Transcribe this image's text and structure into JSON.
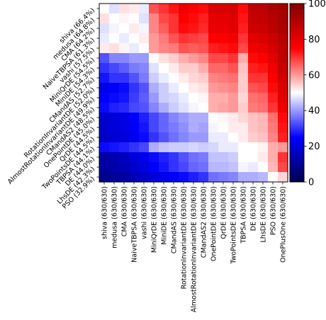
{
  "chart_data": {
    "type": "heatmap",
    "title": "",
    "xlabel": "",
    "ylabel": "",
    "colormap": "seismic",
    "x_labels": [
      "shiva (630/630)",
      "medusa (630/630)",
      "CMA (630/630)",
      "NaiveTBPSA (630/630)",
      "vashi (630/630)",
      "MiniQrDE (630/630)",
      "MiniDE (630/630)",
      "CMandAS (630/630)",
      "RotationInvariantDE (630/630)",
      "AlmostRotationInvariantDE (630/630)",
      "CMandAS2 (630/630)",
      "OnePointDE (630/630)",
      "QrDE (630/630)",
      "TwoPointsDE (630/630)",
      "TBPSA (630/630)",
      "DE (630/630)",
      "LhsDE (630/630)",
      "PSO (630/630)",
      "OnePlusOne (630/630)"
    ],
    "y_labels": [
      "shiva (66.4%)",
      "medusa (64.8%)",
      "CMA (64.2%)",
      "NaiveTBPSA (61.3%)",
      "vashi (57.5%)",
      "MiniQrDE (54.5%)",
      "MiniDE (54.3%)",
      "CMandAS (52.7%)",
      "RotationInvariantDE (52.0%)",
      "AlmostRotationInvariantDE (49.9%)",
      "CMandAS2 (48.5%)",
      "OnePointDE (45.0%)",
      "QrDE (44.5%)",
      "TwoPointsDE (44.5%)",
      "TBPSA (44.1%)",
      "DE (44.0%)",
      "LhsDE (42.3%)",
      "PSO (32.9%)"
    ],
    "zlim": [
      0,
      100
    ],
    "colorbar_ticks": [
      0,
      20,
      40,
      60,
      80,
      100
    ],
    "values": [
      [
        50,
        47,
        53,
        52,
        48,
        67,
        70,
        73,
        78,
        75,
        74,
        82,
        82,
        83,
        74,
        88,
        88,
        91,
        93
      ],
      [
        53,
        50,
        51,
        50,
        47,
        62,
        68,
        70,
        76,
        74,
        72,
        80,
        80,
        81,
        73,
        86,
        87,
        89,
        92
      ],
      [
        47,
        49,
        50,
        52,
        49,
        62,
        66,
        70,
        74,
        73,
        71,
        79,
        79,
        80,
        72,
        84,
        85,
        88,
        91
      ],
      [
        48,
        50,
        48,
        50,
        52,
        60,
        63,
        67,
        70,
        69,
        68,
        75,
        76,
        77,
        70,
        80,
        82,
        85,
        89
      ],
      [
        52,
        53,
        51,
        48,
        50,
        60,
        62,
        63,
        67,
        66,
        67,
        72,
        73,
        74,
        68,
        78,
        79,
        83,
        88
      ],
      [
        33,
        38,
        38,
        40,
        40,
        50,
        53,
        55,
        58,
        60,
        62,
        68,
        68,
        70,
        58,
        74,
        75,
        80,
        88
      ],
      [
        30,
        32,
        34,
        37,
        38,
        47,
        50,
        52,
        55,
        55,
        58,
        65,
        65,
        67,
        56,
        72,
        73,
        78,
        86
      ],
      [
        27,
        30,
        30,
        33,
        37,
        45,
        48,
        50,
        52,
        54,
        55,
        62,
        63,
        64,
        55,
        70,
        70,
        76,
        84
      ],
      [
        22,
        24,
        26,
        30,
        33,
        42,
        45,
        48,
        50,
        52,
        53,
        60,
        61,
        62,
        55,
        67,
        68,
        74,
        82
      ],
      [
        25,
        26,
        27,
        31,
        34,
        40,
        45,
        46,
        48,
        50,
        51,
        58,
        58,
        60,
        54,
        64,
        65,
        72,
        80
      ],
      [
        26,
        28,
        29,
        32,
        33,
        38,
        42,
        45,
        47,
        49,
        50,
        58,
        59,
        60,
        55,
        63,
        64,
        70,
        78
      ],
      [
        18,
        20,
        21,
        25,
        28,
        32,
        35,
        38,
        40,
        42,
        42,
        50,
        51,
        52,
        54,
        56,
        57,
        64,
        74
      ],
      [
        18,
        20,
        21,
        24,
        27,
        32,
        35,
        37,
        39,
        42,
        41,
        49,
        50,
        52,
        52,
        56,
        57,
        63,
        73
      ],
      [
        17,
        19,
        20,
        23,
        26,
        30,
        33,
        36,
        38,
        40,
        40,
        48,
        48,
        50,
        52,
        55,
        56,
        62,
        72
      ],
      [
        26,
        27,
        28,
        30,
        32,
        42,
        44,
        45,
        45,
        46,
        45,
        46,
        48,
        48,
        50,
        50,
        51,
        58,
        60
      ],
      [
        12,
        14,
        16,
        20,
        22,
        26,
        28,
        30,
        33,
        36,
        37,
        44,
        44,
        45,
        50,
        50,
        52,
        58,
        70
      ],
      [
        12,
        13,
        15,
        18,
        21,
        25,
        27,
        30,
        32,
        35,
        36,
        43,
        43,
        44,
        49,
        48,
        50,
        57,
        68
      ],
      [
        9,
        11,
        12,
        15,
        17,
        20,
        22,
        24,
        26,
        28,
        30,
        36,
        37,
        38,
        42,
        42,
        43,
        50,
        54
      ]
    ]
  }
}
